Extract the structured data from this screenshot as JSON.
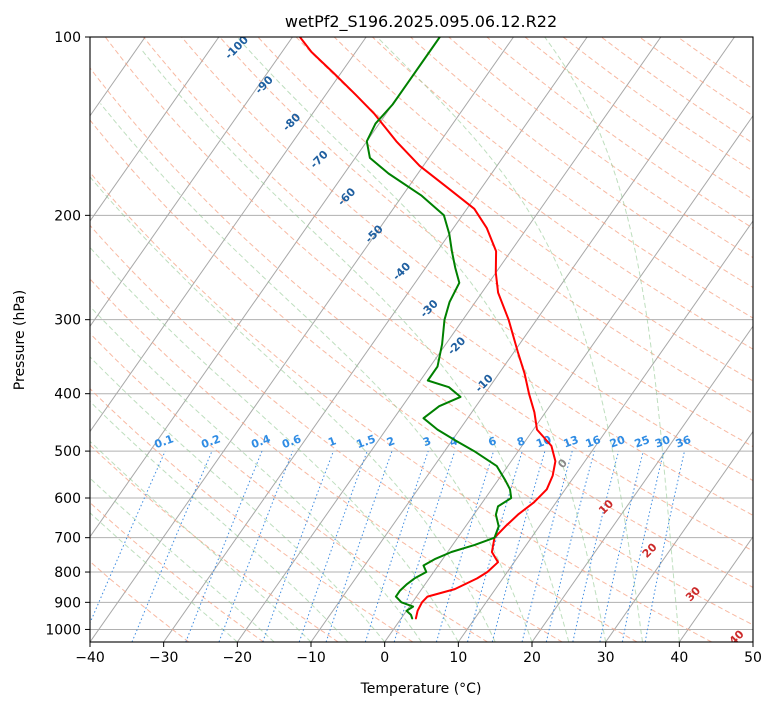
{
  "chart_data": {
    "type": "line",
    "title": "wetPf2_S196.2025.095.06.12.R22",
    "xlabel": "Temperature (°C)",
    "ylabel": "Pressure (hPa)",
    "xlim": [
      -40,
      50
    ],
    "ylim": [
      1050,
      100
    ],
    "y_scale": "log",
    "grid": true,
    "x_ticks": [
      "−40",
      "−30",
      "−20",
      "−10",
      "0",
      "10",
      "20",
      "30",
      "40",
      "50"
    ],
    "x_tick_values": [
      -40,
      -30,
      -20,
      -10,
      0,
      10,
      20,
      30,
      40,
      50
    ],
    "y_ticks": [
      "100",
      "200",
      "300",
      "400",
      "500",
      "600",
      "700",
      "800",
      "900",
      "1000"
    ],
    "y_tick_values": [
      100,
      200,
      300,
      400,
      500,
      600,
      700,
      800,
      900,
      1000
    ],
    "skew": 0.7,
    "series": [
      {
        "role": "temperature",
        "color": "#ff0000",
        "points": [
          [
            958,
            2.0
          ],
          [
            930,
            1.5
          ],
          [
            900,
            1.3
          ],
          [
            880,
            1.5
          ],
          [
            855,
            4.5
          ],
          [
            820,
            6.5
          ],
          [
            800,
            7.3
          ],
          [
            770,
            7.8
          ],
          [
            740,
            6.0
          ],
          [
            700,
            5.0
          ],
          [
            670,
            5.4
          ],
          [
            640,
            6.0
          ],
          [
            610,
            7.0
          ],
          [
            580,
            7.5
          ],
          [
            550,
            7.0
          ],
          [
            520,
            6.0
          ],
          [
            490,
            4.0
          ],
          [
            460,
            0.5
          ],
          [
            430,
            -1.5
          ],
          [
            400,
            -4.0
          ],
          [
            370,
            -6.5
          ],
          [
            340,
            -9.5
          ],
          [
            300,
            -13.8
          ],
          [
            270,
            -17.8
          ],
          [
            250,
            -20.0
          ],
          [
            230,
            -22.0
          ],
          [
            210,
            -25.5
          ],
          [
            195,
            -29.0
          ],
          [
            180,
            -34.5
          ],
          [
            165,
            -40.5
          ],
          [
            150,
            -46.0
          ],
          [
            135,
            -51.5
          ],
          [
            125,
            -56.0
          ],
          [
            115,
            -61.0
          ],
          [
            106,
            -66.0
          ],
          [
            100,
            -69.0
          ]
        ]
      },
      {
        "role": "dewpoint",
        "color": "#008000",
        "points": [
          [
            958,
            1.5
          ],
          [
            945,
            1.0
          ],
          [
            930,
            0.0
          ],
          [
            915,
            0.5
          ],
          [
            900,
            -1.5
          ],
          [
            880,
            -2.8
          ],
          [
            860,
            -2.8
          ],
          [
            840,
            -2.5
          ],
          [
            820,
            -2.0
          ],
          [
            800,
            -1.0
          ],
          [
            780,
            -2.0
          ],
          [
            760,
            -1.0
          ],
          [
            740,
            0.5
          ],
          [
            720,
            3.0
          ],
          [
            700,
            5.0
          ],
          [
            670,
            4.5
          ],
          [
            640,
            3.0
          ],
          [
            620,
            2.5
          ],
          [
            600,
            3.5
          ],
          [
            580,
            2.5
          ],
          [
            560,
            1.0
          ],
          [
            530,
            -1.5
          ],
          [
            500,
            -6.0
          ],
          [
            480,
            -9.5
          ],
          [
            460,
            -13.0
          ],
          [
            440,
            -16.0
          ],
          [
            420,
            -15.0
          ],
          [
            405,
            -13.0
          ],
          [
            390,
            -15.5
          ],
          [
            380,
            -19.0
          ],
          [
            360,
            -19.0
          ],
          [
            330,
            -20.5
          ],
          [
            300,
            -22.5
          ],
          [
            280,
            -23.5
          ],
          [
            260,
            -24.0
          ],
          [
            245,
            -26.0
          ],
          [
            230,
            -28.0
          ],
          [
            215,
            -30.0
          ],
          [
            200,
            -32.5
          ],
          [
            185,
            -37.5
          ],
          [
            170,
            -44.0
          ],
          [
            160,
            -48.0
          ],
          [
            150,
            -50.0
          ],
          [
            140,
            -50.5
          ],
          [
            130,
            -50.0
          ],
          [
            120,
            -50.0
          ],
          [
            110,
            -50.0
          ],
          [
            100,
            -50.0
          ]
        ]
      }
    ],
    "dry_adiabat_labels": [
      "-100",
      "-90",
      "-80",
      "-70",
      "-60",
      "-50",
      "-40",
      "-30",
      "-20",
      "-10",
      "0",
      "10",
      "20",
      "30",
      "40"
    ],
    "mixing_ratio_labels": [
      "0.1",
      "0.2",
      "0.4",
      "0.6",
      "1",
      "1.5",
      "2",
      "3",
      "4",
      "6",
      "8",
      "10",
      "13",
      "16",
      "20",
      "25",
      "30",
      "36"
    ]
  }
}
